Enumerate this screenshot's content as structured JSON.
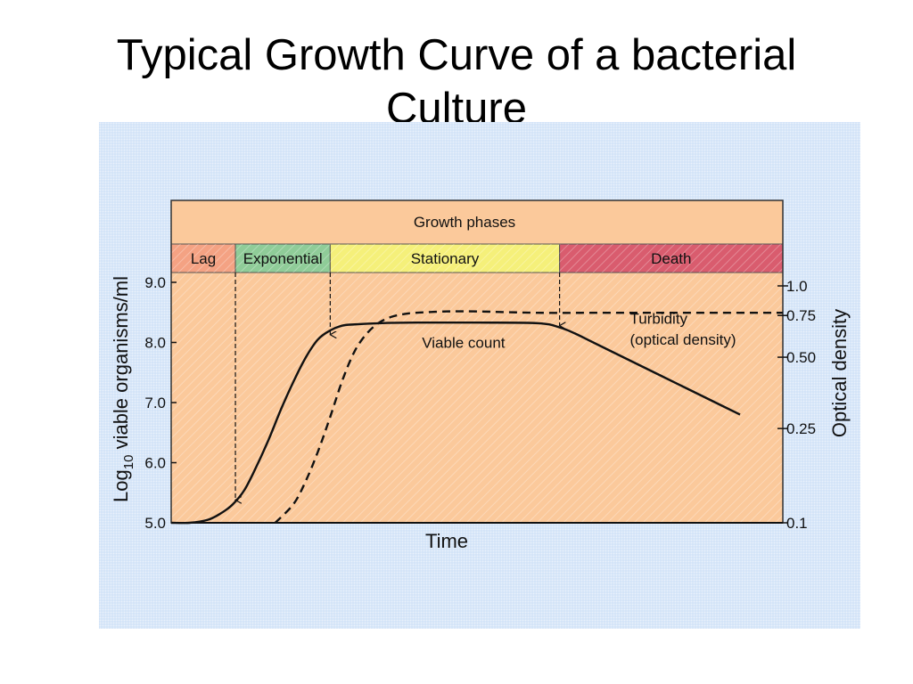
{
  "slide": {
    "title": "Typical Growth Curve of a bacterial\nCulture"
  },
  "colors": {
    "background_panel": "#cfe1f7",
    "plot_area": "#fbc99b",
    "phase_lag": "#f4a283",
    "phase_exponential": "#8fcc98",
    "phase_stationary": "#f5f07a",
    "phase_death": "#d95c6e",
    "curve": "#111111"
  },
  "chart_data": {
    "type": "line",
    "title": "Growth phases",
    "xlabel": "Time",
    "ylabel": "Log10 viable organisms/ml",
    "ylabel_parts": {
      "main": "Log",
      "subscript": "10",
      "rest": " viable organisms/ml"
    },
    "y2label": "Optical density",
    "x_range": [
      0,
      100
    ],
    "ylim": [
      5.0,
      9.0
    ],
    "y_ticks": [
      "5.0",
      "6.0",
      "7.0",
      "8.0",
      "9.0"
    ],
    "y_tick_values": [
      5.0,
      6.0,
      7.0,
      8.0,
      9.0
    ],
    "y2_scale": "log",
    "y2lim": [
      0.1,
      1.0
    ],
    "y2_ticks": [
      "0.1",
      "0.25",
      "0.50",
      "0.75",
      "1.0"
    ],
    "y2_tick_values": [
      0.1,
      0.25,
      0.5,
      0.75,
      1.0
    ],
    "grid": false,
    "phases": [
      {
        "name": "Lag",
        "start": 0,
        "end": 10.5,
        "color": "#f4a283"
      },
      {
        "name": "Exponential",
        "start": 10.5,
        "end": 26,
        "color": "#8fcc98"
      },
      {
        "name": "Stationary",
        "start": 26,
        "end": 63.5,
        "color": "#f5f07a"
      },
      {
        "name": "Death",
        "start": 63.5,
        "end": 100,
        "color": "#d95c6e"
      }
    ],
    "phase_markers": [
      {
        "x": 10.5,
        "y": 5.35
      },
      {
        "x": 26,
        "y": 8.1
      },
      {
        "x": 63.5,
        "y": 8.25
      }
    ],
    "series": [
      {
        "name": "Viable count",
        "axis": "left",
        "style": "solid",
        "x": [
          0,
          3,
          6,
          8,
          10,
          12,
          14,
          16,
          18,
          20,
          22,
          24,
          26,
          28,
          30,
          34,
          40,
          50,
          60,
          63.5,
          66,
          70,
          80,
          90,
          93
        ],
        "y": [
          5.0,
          5.0,
          5.05,
          5.15,
          5.3,
          5.55,
          5.95,
          6.4,
          6.9,
          7.35,
          7.75,
          8.05,
          8.2,
          8.28,
          8.3,
          8.32,
          8.33,
          8.33,
          8.32,
          8.25,
          8.15,
          7.95,
          7.45,
          6.95,
          6.8
        ]
      },
      {
        "name": "Turbidity (optical density)",
        "axis": "right",
        "style": "dashed",
        "x": [
          17,
          20,
          22,
          24,
          26,
          28,
          30,
          32,
          34,
          36,
          38,
          40,
          45,
          50,
          60,
          70,
          80,
          90,
          100
        ],
        "y": [
          0.1,
          0.12,
          0.15,
          0.2,
          0.28,
          0.4,
          0.53,
          0.63,
          0.7,
          0.74,
          0.76,
          0.77,
          0.78,
          0.78,
          0.77,
          0.77,
          0.77,
          0.77,
          0.77
        ]
      }
    ],
    "annotations": [
      {
        "text": "Viable count",
        "x": 41,
        "y": 8.0
      },
      {
        "text": "Turbidity",
        "x": 75,
        "y": 8.4
      },
      {
        "text": "(optical density)",
        "x": 75,
        "y": 8.05
      }
    ]
  }
}
